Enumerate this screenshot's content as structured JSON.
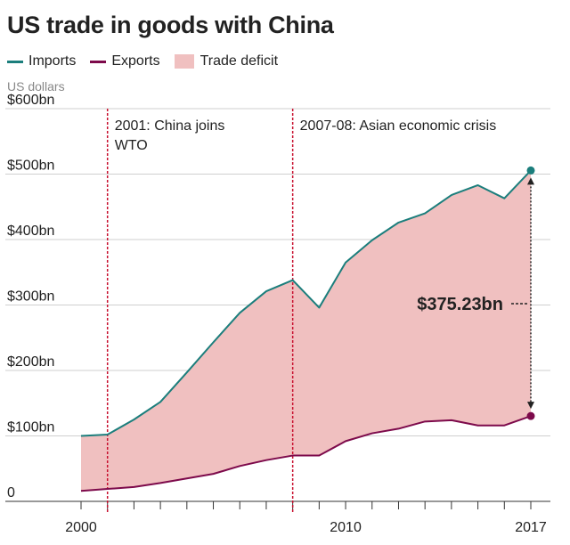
{
  "chart_data": {
    "type": "area",
    "title": "US trade in goods with China",
    "ylabel": "US dollars",
    "xlabel": "",
    "legend": [
      "Imports",
      "Exports",
      "Trade deficit"
    ],
    "legend_position": "top-left",
    "colors": {
      "imports": "#1b7e7c",
      "exports": "#7d0a4b",
      "deficit": "#f0c0c0",
      "event_line": "#c8102e"
    },
    "x": [
      2000,
      2001,
      2002,
      2003,
      2004,
      2005,
      2006,
      2007,
      2008,
      2009,
      2010,
      2011,
      2012,
      2013,
      2014,
      2015,
      2016,
      2017
    ],
    "series": [
      {
        "name": "Imports",
        "values": [
          100,
          102,
          125,
          152,
          197,
          243,
          288,
          321,
          338,
          296,
          365,
          399,
          426,
          440,
          468,
          483,
          463,
          505.6
        ]
      },
      {
        "name": "Exports",
        "values": [
          16,
          19,
          22,
          28,
          35,
          42,
          54,
          63,
          70,
          70,
          92,
          104,
          111,
          122,
          124,
          116,
          116,
          130.4
        ]
      }
    ],
    "ylim": [
      0,
      600
    ],
    "yticks": [
      0,
      100,
      200,
      300,
      400,
      500,
      600
    ],
    "ytick_labels": [
      "0",
      "$100bn",
      "$200bn",
      "$300bn",
      "$400bn",
      "$500bn",
      "$600bn"
    ],
    "xtick_labels": [
      {
        "x": 2000,
        "label": "2000"
      },
      {
        "x": 2010,
        "label": "2010"
      },
      {
        "x": 2017,
        "label": "2017"
      }
    ],
    "events": [
      {
        "x": 2001,
        "label_line1": "2001: China joins",
        "label_line2": "WTO"
      },
      {
        "x": 2008,
        "label_line1": "2007-08: Asian economic crisis",
        "label_line2": ""
      }
    ],
    "callout": {
      "x": 2017,
      "label": "$375.23bn"
    },
    "grid": true
  }
}
